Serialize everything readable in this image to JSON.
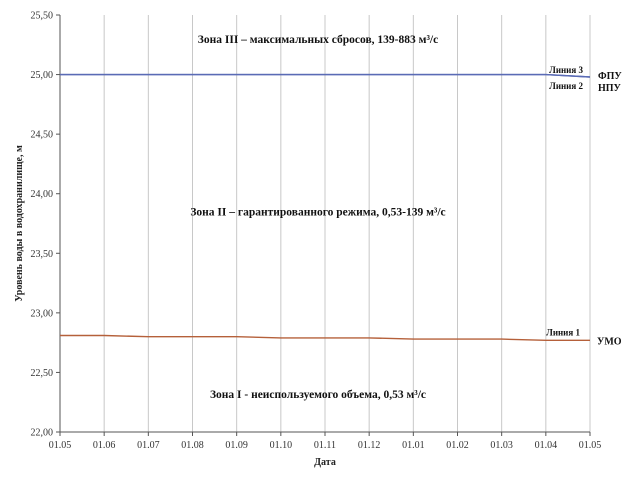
{
  "chart_data": {
    "type": "line",
    "xlabel": "Дата",
    "ylabel": "Уровень воды в водохранилище, м",
    "ylim": [
      22.0,
      25.5
    ],
    "y_ticks": [
      "22,00",
      "22,50",
      "23,00",
      "23,50",
      "24,00",
      "24,50",
      "25,00",
      "25,50"
    ],
    "categories": [
      "01.05",
      "01.06",
      "01.07",
      "01.08",
      "01.09",
      "01.10",
      "01.11",
      "01.12",
      "01.01",
      "01.02",
      "01.03",
      "01.04",
      "01.05"
    ],
    "grid": "vertical",
    "series": [
      {
        "name": "Линия 3",
        "color": "#5a6bb5",
        "values": [
          25.0,
          25.0,
          25.0,
          25.0,
          25.0,
          25.0,
          25.0,
          25.0,
          25.0,
          25.0,
          25.0,
          25.0,
          24.98
        ]
      },
      {
        "name": "Линия 2",
        "color": "#5a6bb5",
        "values": [
          25.0,
          25.0,
          25.0,
          25.0,
          25.0,
          25.0,
          25.0,
          25.0,
          25.0,
          25.0,
          25.0,
          25.0,
          24.98
        ]
      },
      {
        "name": "Линия 1",
        "color": "#b5603a",
        "values": [
          22.81,
          22.81,
          22.8,
          22.8,
          22.8,
          22.79,
          22.79,
          22.79,
          22.78,
          22.78,
          22.78,
          22.77,
          22.77
        ]
      }
    ],
    "level_labels": {
      "fpu": "ФПУ",
      "npu": "НПУ",
      "umo": "УМО"
    },
    "zones": [
      {
        "text": "Зона III – максимальных сбросов, 139-883 м³/с",
        "y": 25.3
      },
      {
        "text": "Зона II – гарантированного режима, 0,53-139 м³/с",
        "y": 23.85
      },
      {
        "text": "Зона I - неиспользуемого объема, 0,53 м³/с",
        "y": 22.32
      }
    ]
  }
}
